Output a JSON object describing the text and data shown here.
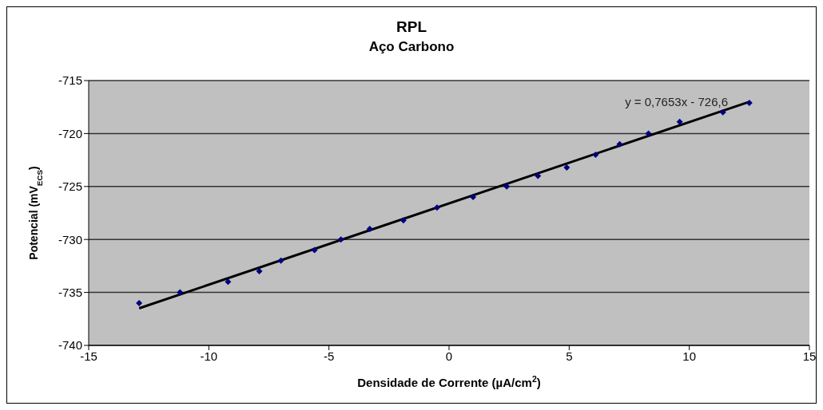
{
  "chart_data": {
    "type": "scatter",
    "title": "RPL",
    "subtitle": "Aço Carbono",
    "xlabel": "Densidade de Corrente (µA/cm$^{2}$)",
    "ylabel": "Potencial (mV$_{ECS}$)",
    "x": [
      -12.9,
      -11.2,
      -9.2,
      -7.9,
      -7.0,
      -5.6,
      -4.5,
      -3.3,
      -1.9,
      -0.5,
      1.0,
      2.4,
      3.7,
      4.9,
      6.1,
      7.1,
      8.3,
      9.6,
      11.4,
      12.5
    ],
    "series": [
      {
        "color": "#000080",
        "marker": "diamond",
        "values": [
          -736,
          -735,
          -734,
          -733,
          -732,
          -731,
          -730,
          -729,
          -728.2,
          -727,
          -726,
          -725,
          -724,
          -723.2,
          -722,
          -721,
          -720,
          -718.9,
          -718,
          -717.1
        ]
      },
      {
        "type": "line",
        "color": "#000000",
        "x": [
          -12.9,
          12.5
        ],
        "values": [
          -736.5,
          -717.0
        ]
      }
    ],
    "annotations": [
      "y = 0,7653x - 726,6"
    ],
    "xlim": [
      -15,
      15
    ],
    "xticks": [
      -15,
      -10,
      -5,
      0,
      5,
      10,
      15
    ],
    "ylim": [
      -740,
      -715
    ],
    "yticks": [
      -740,
      -735,
      -730,
      -725,
      -720,
      -715
    ],
    "grid": "y",
    "legend": false
  }
}
